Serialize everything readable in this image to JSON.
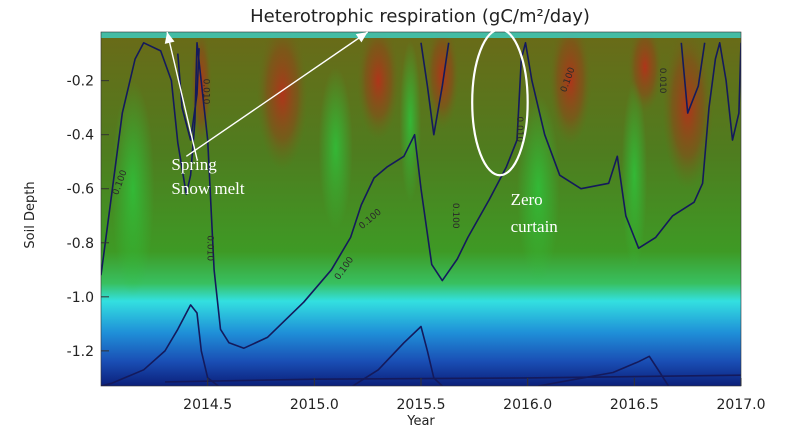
{
  "chart_data": {
    "type": "heatmap",
    "title": "Heterotrophic respiration (gC/m²/day)",
    "xlabel": "Year",
    "ylabel": "Soil Depth",
    "xlim": [
      2014.0,
      2017.0
    ],
    "ylim": [
      -1.33,
      -0.02
    ],
    "x_ticks": [
      {
        "value": 2014.5,
        "label": "2014.5"
      },
      {
        "value": 2015.0,
        "label": "2015.0"
      },
      {
        "value": 2015.5,
        "label": "2015.5"
      },
      {
        "value": 2016.0,
        "label": "2016.0"
      },
      {
        "value": 2016.5,
        "label": "2016.5"
      },
      {
        "value": 2017.0,
        "label": "2017.0"
      }
    ],
    "y_ticks": [
      {
        "value": -0.2,
        "label": "-0.2"
      },
      {
        "value": -0.4,
        "label": "-0.4"
      },
      {
        "value": -0.6,
        "label": "-0.6"
      },
      {
        "value": -0.8,
        "label": "-0.8"
      },
      {
        "value": -1.0,
        "label": "-1.0"
      },
      {
        "value": -1.2,
        "label": "-1.2"
      }
    ],
    "contour_level_label": "0.100",
    "colors": {
      "deep": "#0b1f7a",
      "blue": "#1f63c8",
      "cyan": "#33e0e0",
      "green": "#3fa02a",
      "olive": "#6a6a18",
      "red": "#a8301a",
      "contour": "#141a5c"
    },
    "contours": [
      {
        "points": [
          [
            2014.0,
            -0.92
          ],
          [
            2014.05,
            -0.62
          ],
          [
            2014.1,
            -0.32
          ],
          [
            2014.16,
            -0.12
          ],
          [
            2014.2,
            -0.06
          ],
          [
            2014.28,
            -0.09
          ],
          [
            2014.33,
            -0.2
          ],
          [
            2014.36,
            -0.43
          ],
          [
            2014.4,
            -0.62
          ],
          [
            2014.42,
            -0.55
          ],
          [
            2014.44,
            -0.35
          ],
          [
            2014.45,
            -0.06
          ],
          [
            2014.5,
            -0.42
          ],
          [
            2014.53,
            -0.9
          ],
          [
            2014.56,
            -1.12
          ],
          [
            2014.6,
            -1.17
          ],
          [
            2014.67,
            -1.19
          ],
          [
            2014.78,
            -1.15
          ],
          [
            2014.95,
            -1.02
          ],
          [
            2015.08,
            -0.9
          ],
          [
            2015.17,
            -0.78
          ],
          [
            2015.22,
            -0.66
          ],
          [
            2015.28,
            -0.56
          ],
          [
            2015.34,
            -0.52
          ],
          [
            2015.42,
            -0.48
          ],
          [
            2015.47,
            -0.4
          ],
          [
            2015.5,
            -0.6
          ],
          [
            2015.55,
            -0.88
          ],
          [
            2015.6,
            -0.94
          ],
          [
            2015.67,
            -0.86
          ],
          [
            2015.72,
            -0.78
          ],
          [
            2015.82,
            -0.64
          ],
          [
            2015.9,
            -0.52
          ],
          [
            2015.95,
            -0.42
          ],
          [
            2015.97,
            -0.12
          ],
          [
            2015.99,
            -0.06
          ],
          [
            2016.02,
            -0.2
          ],
          [
            2016.08,
            -0.4
          ],
          [
            2016.15,
            -0.55
          ],
          [
            2016.25,
            -0.6
          ],
          [
            2016.38,
            -0.58
          ],
          [
            2016.42,
            -0.48
          ],
          [
            2016.46,
            -0.7
          ],
          [
            2016.52,
            -0.82
          ],
          [
            2016.6,
            -0.78
          ],
          [
            2016.68,
            -0.7
          ],
          [
            2016.78,
            -0.65
          ],
          [
            2016.82,
            -0.58
          ],
          [
            2016.85,
            -0.3
          ],
          [
            2016.88,
            -0.12
          ],
          [
            2016.9,
            -0.06
          ],
          [
            2016.93,
            -0.2
          ],
          [
            2016.96,
            -0.42
          ],
          [
            2016.99,
            -0.32
          ],
          [
            2017.0,
            -0.06
          ]
        ]
      },
      {
        "points": [
          [
            2014.36,
            -0.1
          ],
          [
            2014.38,
            -0.3
          ],
          [
            2014.42,
            -0.42
          ],
          [
            2014.45,
            -0.25
          ],
          [
            2014.46,
            -0.08
          ]
        ]
      },
      {
        "points": [
          [
            2015.5,
            -0.06
          ],
          [
            2015.53,
            -0.22
          ],
          [
            2015.56,
            -0.4
          ],
          [
            2015.6,
            -0.22
          ],
          [
            2015.63,
            -0.06
          ]
        ]
      },
      {
        "points": [
          [
            2016.72,
            -0.06
          ],
          [
            2016.75,
            -0.32
          ],
          [
            2016.8,
            -0.22
          ],
          [
            2016.83,
            -0.06
          ]
        ]
      },
      {
        "points": [
          [
            2014.0,
            -1.33
          ],
          [
            2014.05,
            -1.32
          ],
          [
            2014.2,
            -1.27
          ],
          [
            2014.3,
            -1.2
          ],
          [
            2014.36,
            -1.12
          ],
          [
            2014.42,
            -1.03
          ],
          [
            2014.45,
            -1.06
          ],
          [
            2014.47,
            -1.2
          ],
          [
            2014.5,
            -1.3
          ],
          [
            2014.55,
            -1.33
          ]
        ]
      },
      {
        "points": [
          [
            2015.18,
            -1.33
          ],
          [
            2015.3,
            -1.27
          ],
          [
            2015.42,
            -1.17
          ],
          [
            2015.5,
            -1.11
          ],
          [
            2015.53,
            -1.2
          ],
          [
            2015.56,
            -1.3
          ],
          [
            2015.6,
            -1.33
          ]
        ]
      },
      {
        "points": [
          [
            2016.05,
            -1.33
          ],
          [
            2016.4,
            -1.28
          ],
          [
            2016.52,
            -1.24
          ],
          [
            2016.57,
            -1.22
          ],
          [
            2016.62,
            -1.28
          ],
          [
            2016.66,
            -1.33
          ]
        ]
      },
      {
        "points": [
          [
            2014.3,
            -1.315
          ],
          [
            2015.0,
            -1.305
          ],
          [
            2016.0,
            -1.3
          ],
          [
            2017.0,
            -1.29
          ]
        ]
      }
    ],
    "contour_labels": [
      {
        "x": 2014.1,
        "y": -0.58,
        "text": "0.100",
        "rotate": -70
      },
      {
        "x": 2014.5,
        "y": -0.82,
        "text": "0.010",
        "rotate": 90
      },
      {
        "x": 2014.48,
        "y": -0.24,
        "text": "0.010",
        "rotate": 90
      },
      {
        "x": 2015.15,
        "y": -0.9,
        "text": "0.100",
        "rotate": -55
      },
      {
        "x": 2015.27,
        "y": -0.72,
        "text": "0.100",
        "rotate": -40
      },
      {
        "x": 2015.65,
        "y": -0.7,
        "text": "0.100",
        "rotate": 90
      },
      {
        "x": 2015.95,
        "y": -0.38,
        "text": "0.010",
        "rotate": 90
      },
      {
        "x": 2016.2,
        "y": -0.2,
        "text": "0.100",
        "rotate": -70
      },
      {
        "x": 2016.62,
        "y": -0.2,
        "text": "0.010",
        "rotate": 90
      }
    ],
    "annotations": [
      {
        "text": "Spring",
        "x": 2014.33,
        "y": -0.53
      },
      {
        "text": "Snow melt",
        "x": 2014.33,
        "y": -0.62
      },
      {
        "text": "Zero",
        "x": 2015.92,
        "y": -0.66
      },
      {
        "text": "curtain",
        "x": 2015.92,
        "y": -0.76
      }
    ],
    "arrows": [
      {
        "from": [
          2014.45,
          -0.49
        ],
        "to": [
          2014.31,
          -0.02
        ]
      },
      {
        "from": [
          2014.4,
          -0.48
        ],
        "to": [
          2015.25,
          -0.02
        ]
      }
    ],
    "ellipse": {
      "cx": 2015.87,
      "cy": -0.28,
      "rx": 0.13,
      "ry": 0.27
    }
  }
}
